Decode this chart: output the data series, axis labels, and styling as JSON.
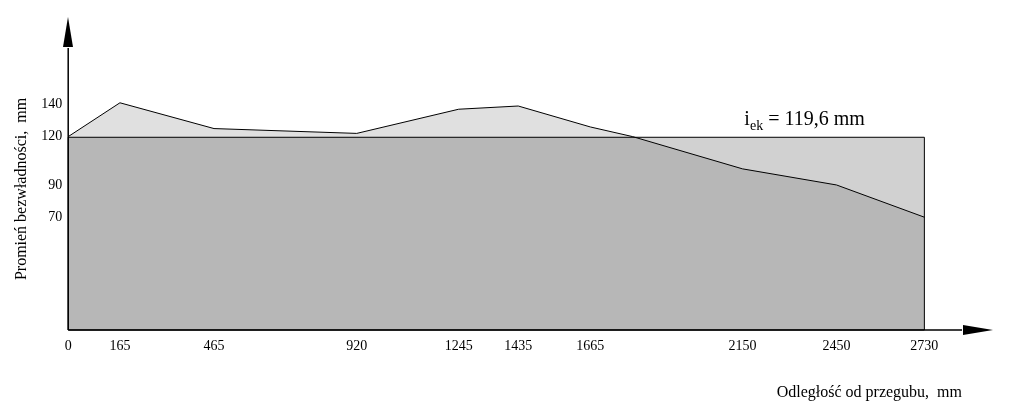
{
  "chart_data": {
    "type": "area",
    "xlabel": "Odległość od przegubu,  mm",
    "ylabel": "Promień bezwładności,  mm",
    "x": [
      0,
      165,
      465,
      920,
      1245,
      1435,
      1665,
      1800,
      2150,
      2450,
      2730
    ],
    "series": [
      {
        "color": "#000000",
        "values": [
          120,
          141,
          125,
          122,
          137,
          139,
          126,
          120,
          100,
          90,
          70
        ]
      }
    ],
    "xlim": [
      0,
      2850
    ],
    "ylim": [
      0,
      175
    ],
    "xticks": [
      0,
      165,
      465,
      920,
      1245,
      1435,
      1665,
      2150,
      2450,
      2730
    ],
    "yticks": [
      70,
      90,
      120,
      140
    ],
    "bands": [
      {
        "axis": "y",
        "from": 0,
        "to": 119.6,
        "label": "i$_{ek}$ = 119,6 mm",
        "color": "#9a9a9a"
      }
    ],
    "grid": false,
    "legend": false
  }
}
